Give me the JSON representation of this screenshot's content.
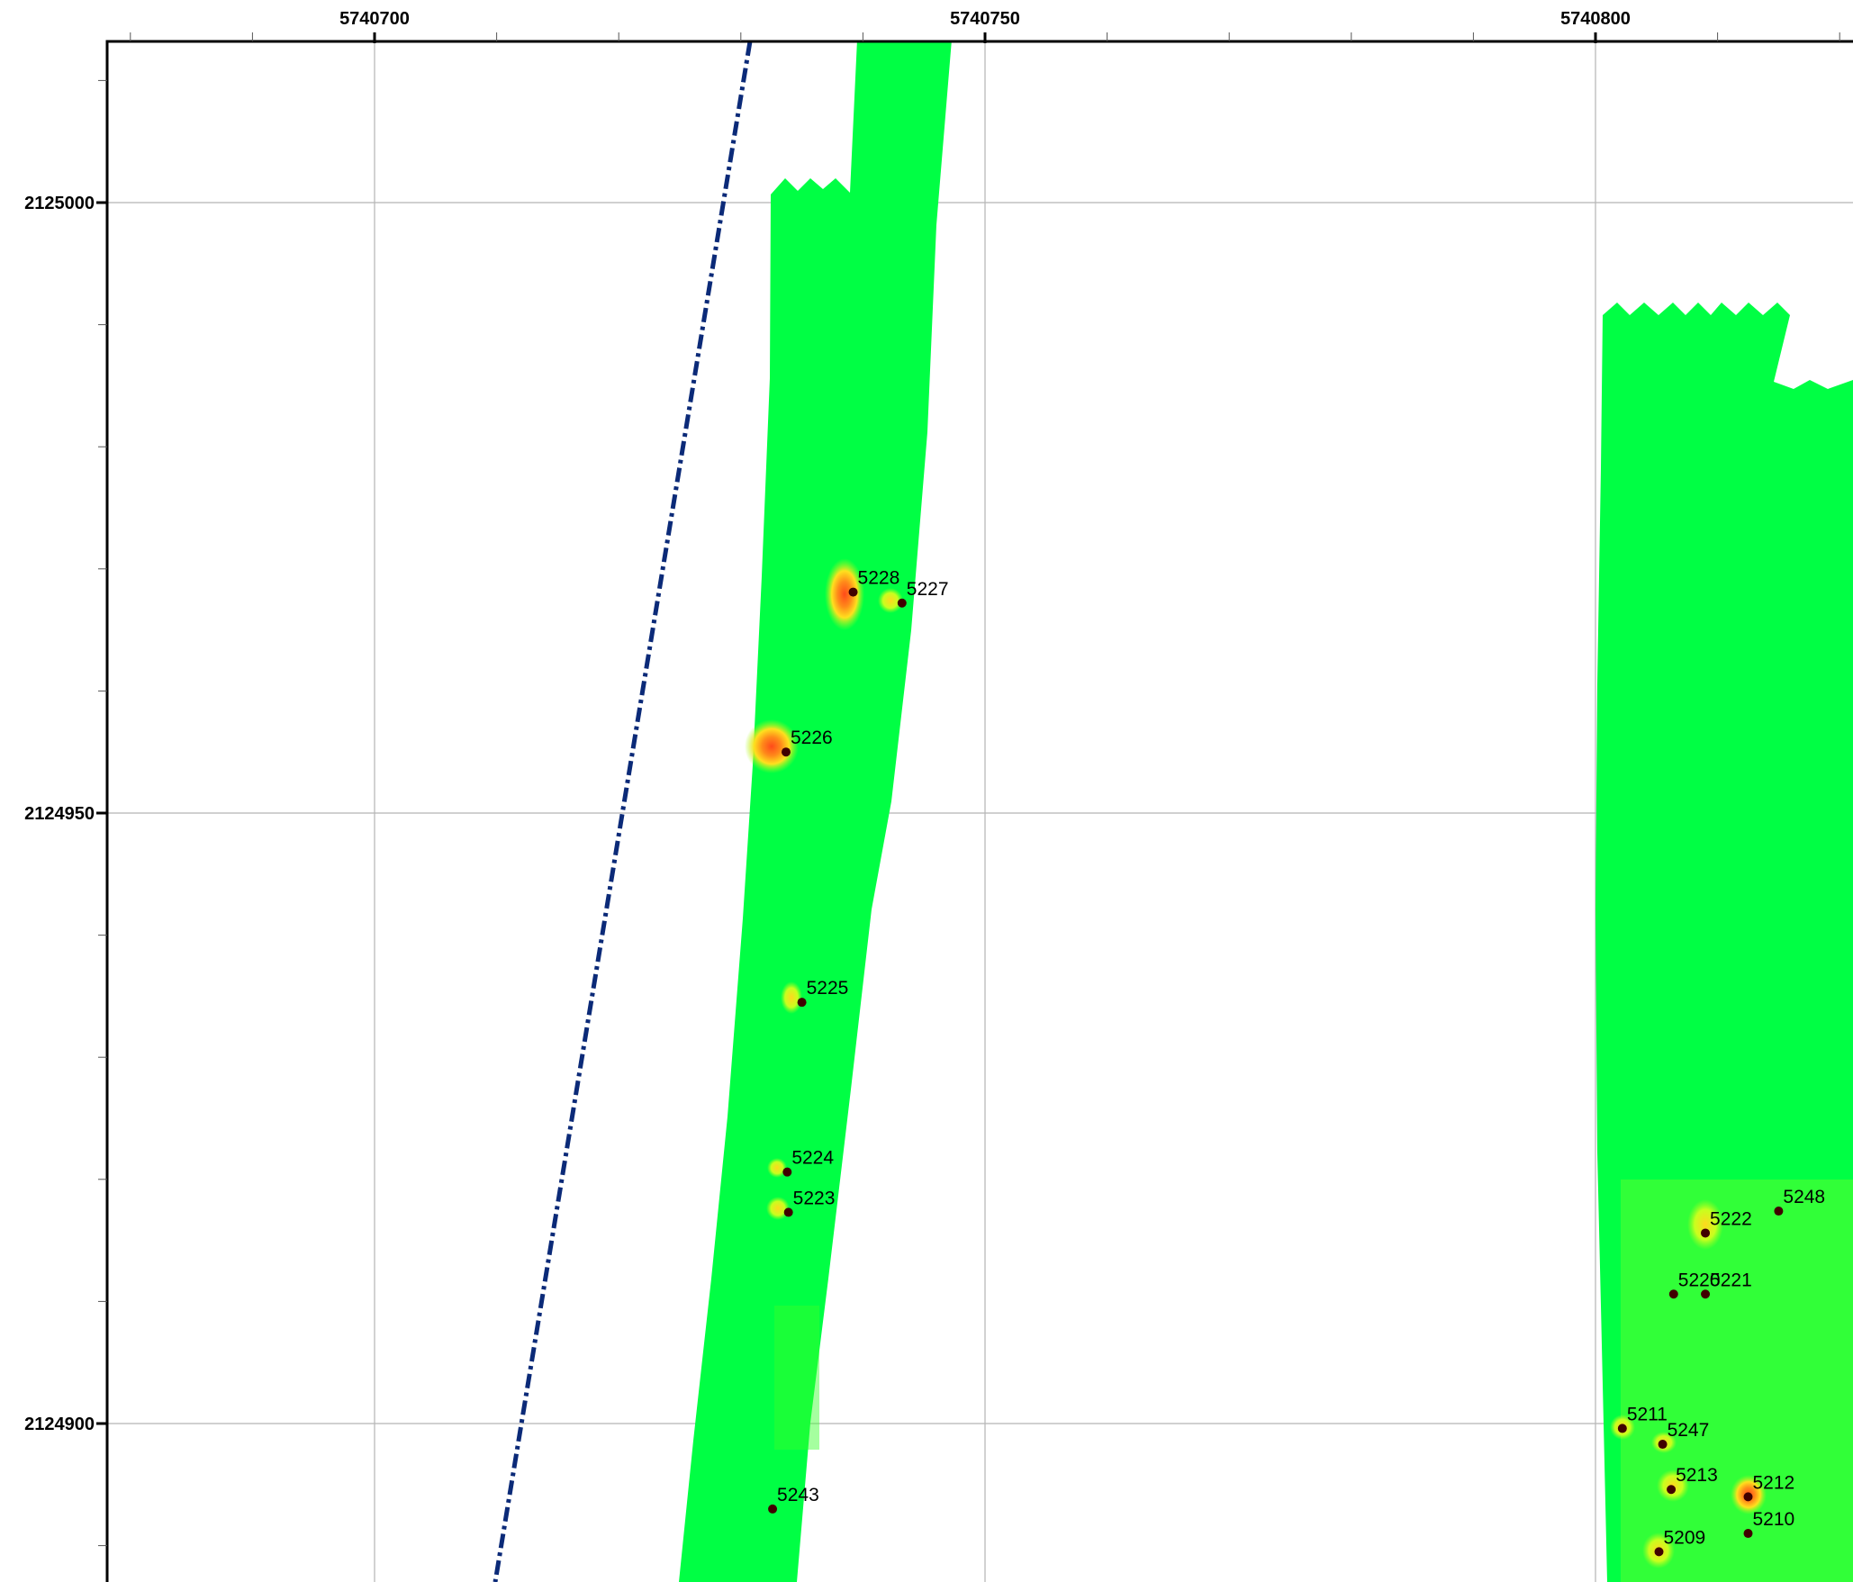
{
  "map": {
    "x_axis_ticks": [
      {
        "value": 5740700,
        "label": "5740700"
      },
      {
        "value": 5740750,
        "label": "5740750"
      },
      {
        "value": 5740800,
        "label": "5740800"
      }
    ],
    "y_axis_ticks": [
      {
        "value": 2125000,
        "label": "2125000"
      },
      {
        "value": 2124950,
        "label": "2124950"
      },
      {
        "value": 2124900,
        "label": "2124900"
      }
    ],
    "colors": {
      "survey_fill": "#00ff44",
      "anomaly_high": "#ff5a1e",
      "anomaly_mid": "#ffd21e",
      "line_style": "#0b2a78",
      "point_marker": "#400000",
      "grid": "#b5b5b5"
    },
    "points": [
      {
        "label": "5228",
        "x": 5740739.2,
        "y": 2124968.1
      },
      {
        "label": "5227",
        "x": 5740743.2,
        "y": 2124967.2
      },
      {
        "label": "5226",
        "x": 5740733.7,
        "y": 2124955.0
      },
      {
        "label": "5225",
        "x": 5740735.0,
        "y": 2124934.5
      },
      {
        "label": "5224",
        "x": 5740733.8,
        "y": 2124920.6
      },
      {
        "label": "5223",
        "x": 5740733.9,
        "y": 2124917.3
      },
      {
        "label": "5243",
        "x": 5740732.6,
        "y": 2124893.0
      },
      {
        "label": "5248",
        "x": 5740815.0,
        "y": 2124917.4
      },
      {
        "label": "5222",
        "x": 5740809.0,
        "y": 2124915.6
      },
      {
        "label": "5220",
        "x": 5740806.4,
        "y": 2124910.6
      },
      {
        "label": "5221",
        "x": 5740809.0,
        "y": 2124910.6
      },
      {
        "label": "5211",
        "x": 5740802.2,
        "y": 2124899.6
      },
      {
        "label": "5247",
        "x": 5740805.5,
        "y": 2124898.3
      },
      {
        "label": "5213",
        "x": 5740806.2,
        "y": 2124894.6
      },
      {
        "label": "5212",
        "x": 5740812.5,
        "y": 2124894.0
      },
      {
        "label": "5210",
        "x": 5740812.5,
        "y": 2124891.0
      },
      {
        "label": "5209",
        "x": 5740805.2,
        "y": 2124889.5
      }
    ]
  }
}
